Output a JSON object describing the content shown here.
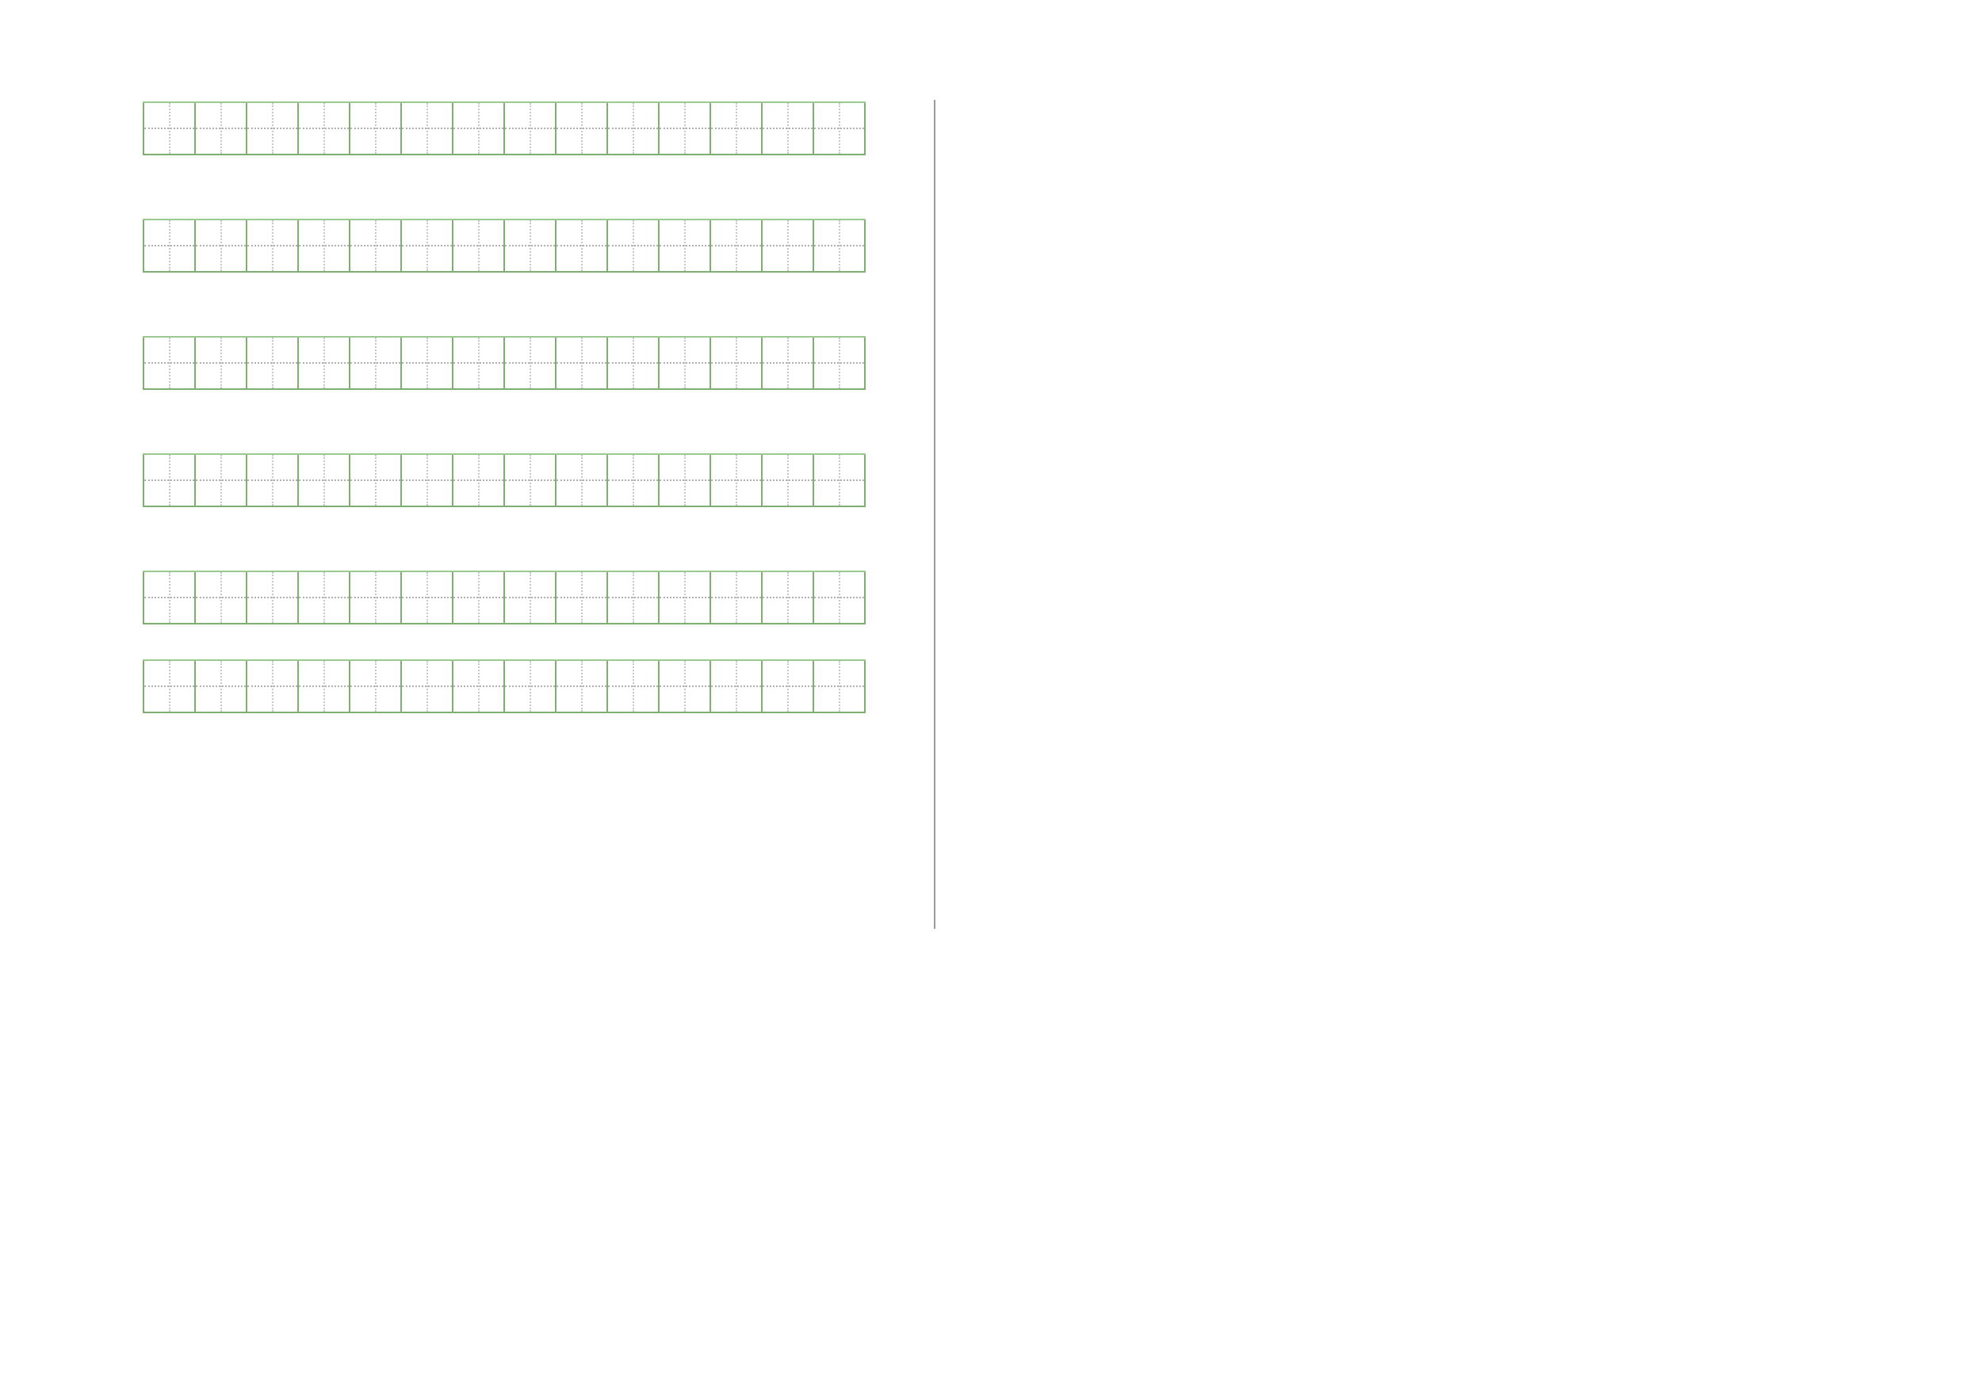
{
  "worksheet": {
    "grid_type": "tian-zi-ge writing grid",
    "row_count": 6,
    "cells_per_row": 14,
    "colors": {
      "cell_border": "#7fae72",
      "guide_line": "#b0b0b0",
      "divider": "#9a9a9a"
    }
  }
}
